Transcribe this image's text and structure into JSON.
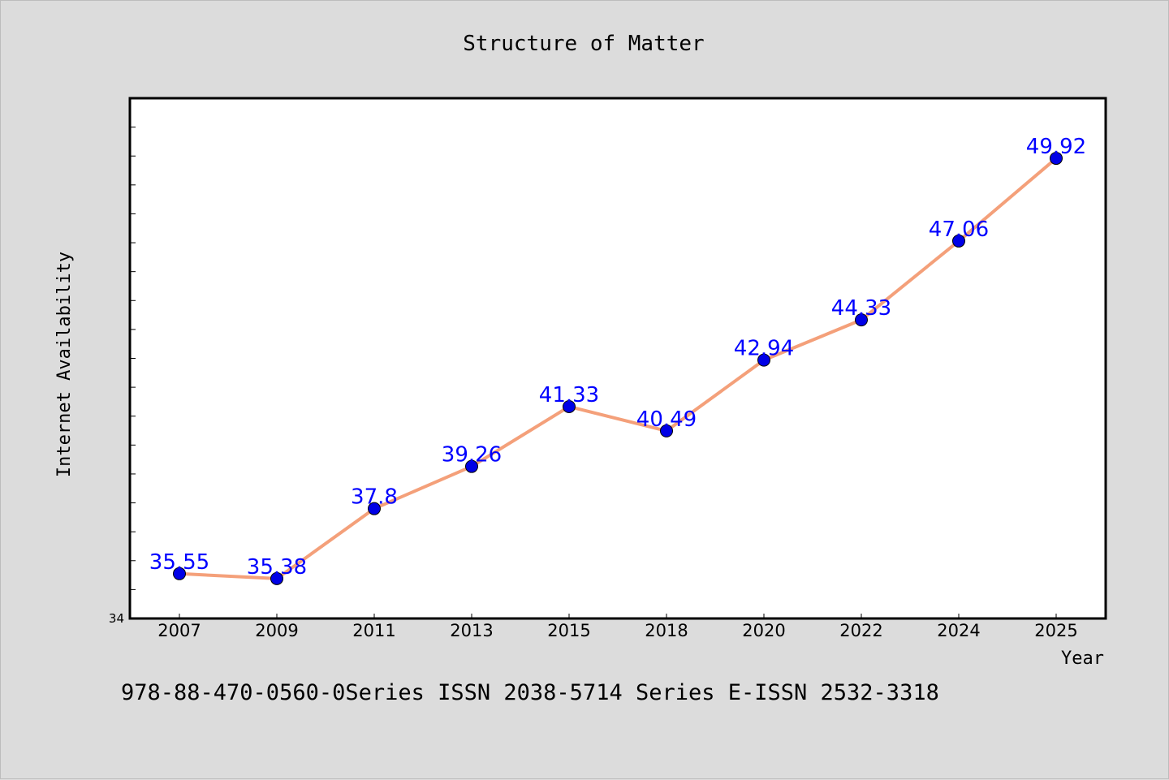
{
  "chart_data": {
    "type": "line",
    "title": "Structure of Matter",
    "xlabel": "Year",
    "ylabel": "Internet Availability",
    "categories": [
      "2007",
      "2009",
      "2011",
      "2013",
      "2015",
      "2018",
      "2020",
      "2022",
      "2024",
      "2025"
    ],
    "series": [
      {
        "values": [
          35.55,
          35.38,
          37.8,
          39.26,
          41.33,
          40.49,
          42.94,
          44.33,
          47.06,
          49.92
        ],
        "data_labels": [
          "35.55",
          "35.38",
          "37.8",
          "39.26",
          "41.33",
          "40.49",
          "42.94",
          "44.33",
          "47.06",
          "49.92"
        ],
        "line_color": "#f4a07a",
        "marker_color": "#0000e6",
        "label_color": "#0000ff"
      }
    ],
    "ylim": [
      34,
      52
    ],
    "y_tick_labels": [
      "34"
    ],
    "grid": false,
    "legend": "none"
  },
  "footer": {
    "text": "978-88-470-0560-0Series ISSN 2038-5714 Series E-ISSN 2532-3318"
  }
}
